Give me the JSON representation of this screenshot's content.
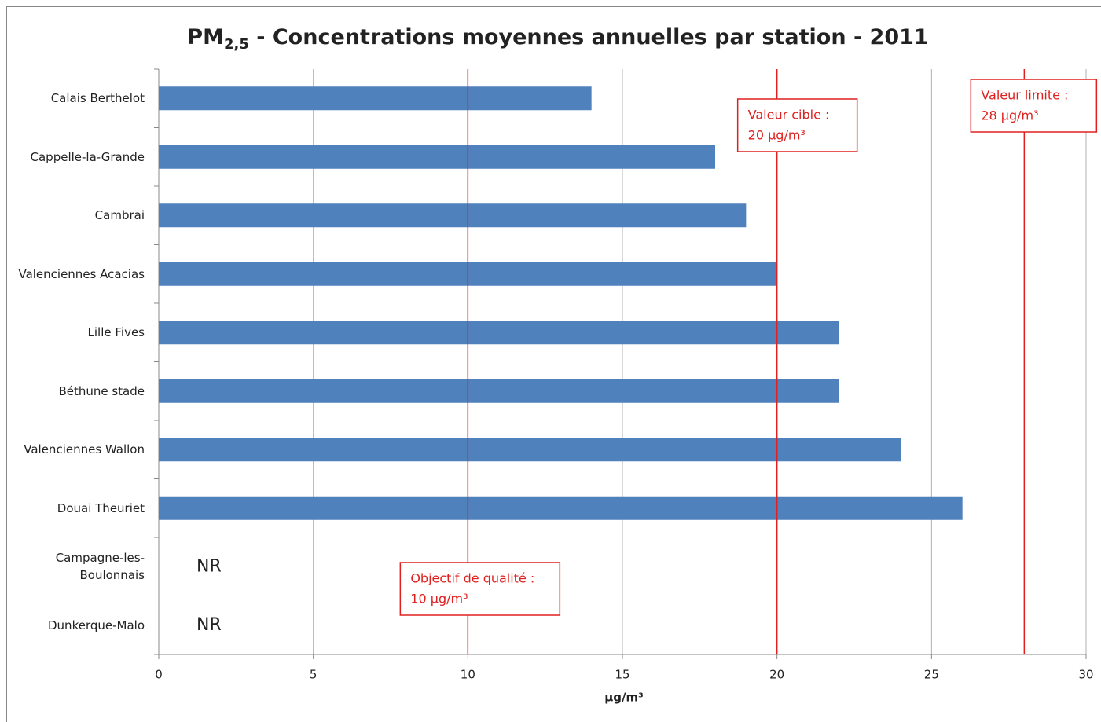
{
  "chart_data": {
    "type": "hbar",
    "title": {
      "main": "PM",
      "sub": "2,5",
      "rest": " - Concentrations moyennes annuelles par station - 2011"
    },
    "categories": [
      "Calais Berthelot",
      "Cappelle-la-Grande",
      "Cambrai",
      "Valenciennes Acacias",
      "Lille Fives",
      "Béthune stade",
      "Valenciennes Wallon",
      "Douai Theuriet",
      "Campagne-les-Boulonnais",
      "Dunkerque-Malo"
    ],
    "values": [
      14,
      18,
      19,
      20,
      22,
      22,
      24,
      26,
      null,
      null
    ],
    "value_labels": [
      null,
      null,
      null,
      null,
      null,
      null,
      null,
      null,
      "NR",
      "NR"
    ],
    "color": "#4f81bd",
    "xlim": [
      0,
      30
    ],
    "xticks": [
      0,
      5,
      10,
      15,
      20,
      25,
      30
    ],
    "grid": true,
    "x_label": "µg/m³",
    "reference_lines": [
      {
        "value": 10,
        "color": "#e0201f",
        "label": [
          "Objectif de qualité  :",
          "10 µg/m³"
        ]
      },
      {
        "value": 20,
        "color": "#e0201f",
        "label": [
          "Valeur cible  :",
          "20 µg/m³"
        ]
      },
      {
        "value": 28,
        "color": "#e0201f",
        "label": [
          "Valeur limite  :",
          "28 µg/m³"
        ]
      }
    ]
  }
}
